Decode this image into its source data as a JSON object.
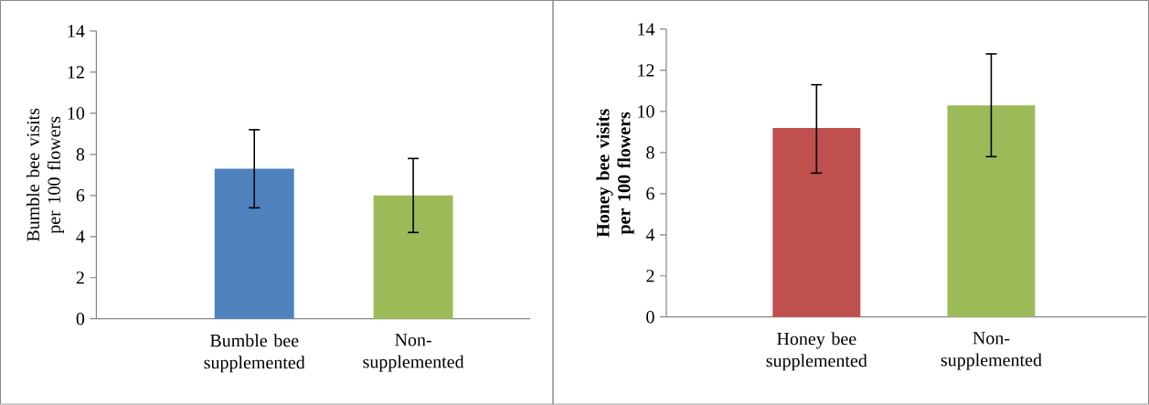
{
  "chart_data": [
    {
      "type": "bar",
      "ylabel": "Bumble bee visits per 100 flowers",
      "categories": [
        "Bumble bee supplemented",
        "Non-supplemented"
      ],
      "values": [
        7.3,
        6.0
      ],
      "colors": [
        "#4f81bd",
        "#9bbb59"
      ],
      "errors": [
        [
          5.4,
          9.2
        ],
        [
          4.2,
          7.8
        ]
      ],
      "ylim": [
        0,
        14
      ],
      "yticks": [
        0,
        2,
        4,
        6,
        8,
        10,
        12,
        14
      ]
    },
    {
      "type": "bar",
      "ylabel": "Honey bee visits per 100 flowers",
      "categories": [
        "Honey bee supplemented",
        "Non-supplemented"
      ],
      "values": [
        9.2,
        10.3
      ],
      "colors": [
        "#c0504d",
        "#9bbb59"
      ],
      "errors": [
        [
          7.0,
          11.3
        ],
        [
          7.8,
          12.8
        ]
      ],
      "ylim": [
        0,
        14
      ],
      "yticks": [
        0,
        2,
        4,
        6,
        8,
        10,
        12,
        14
      ]
    }
  ]
}
